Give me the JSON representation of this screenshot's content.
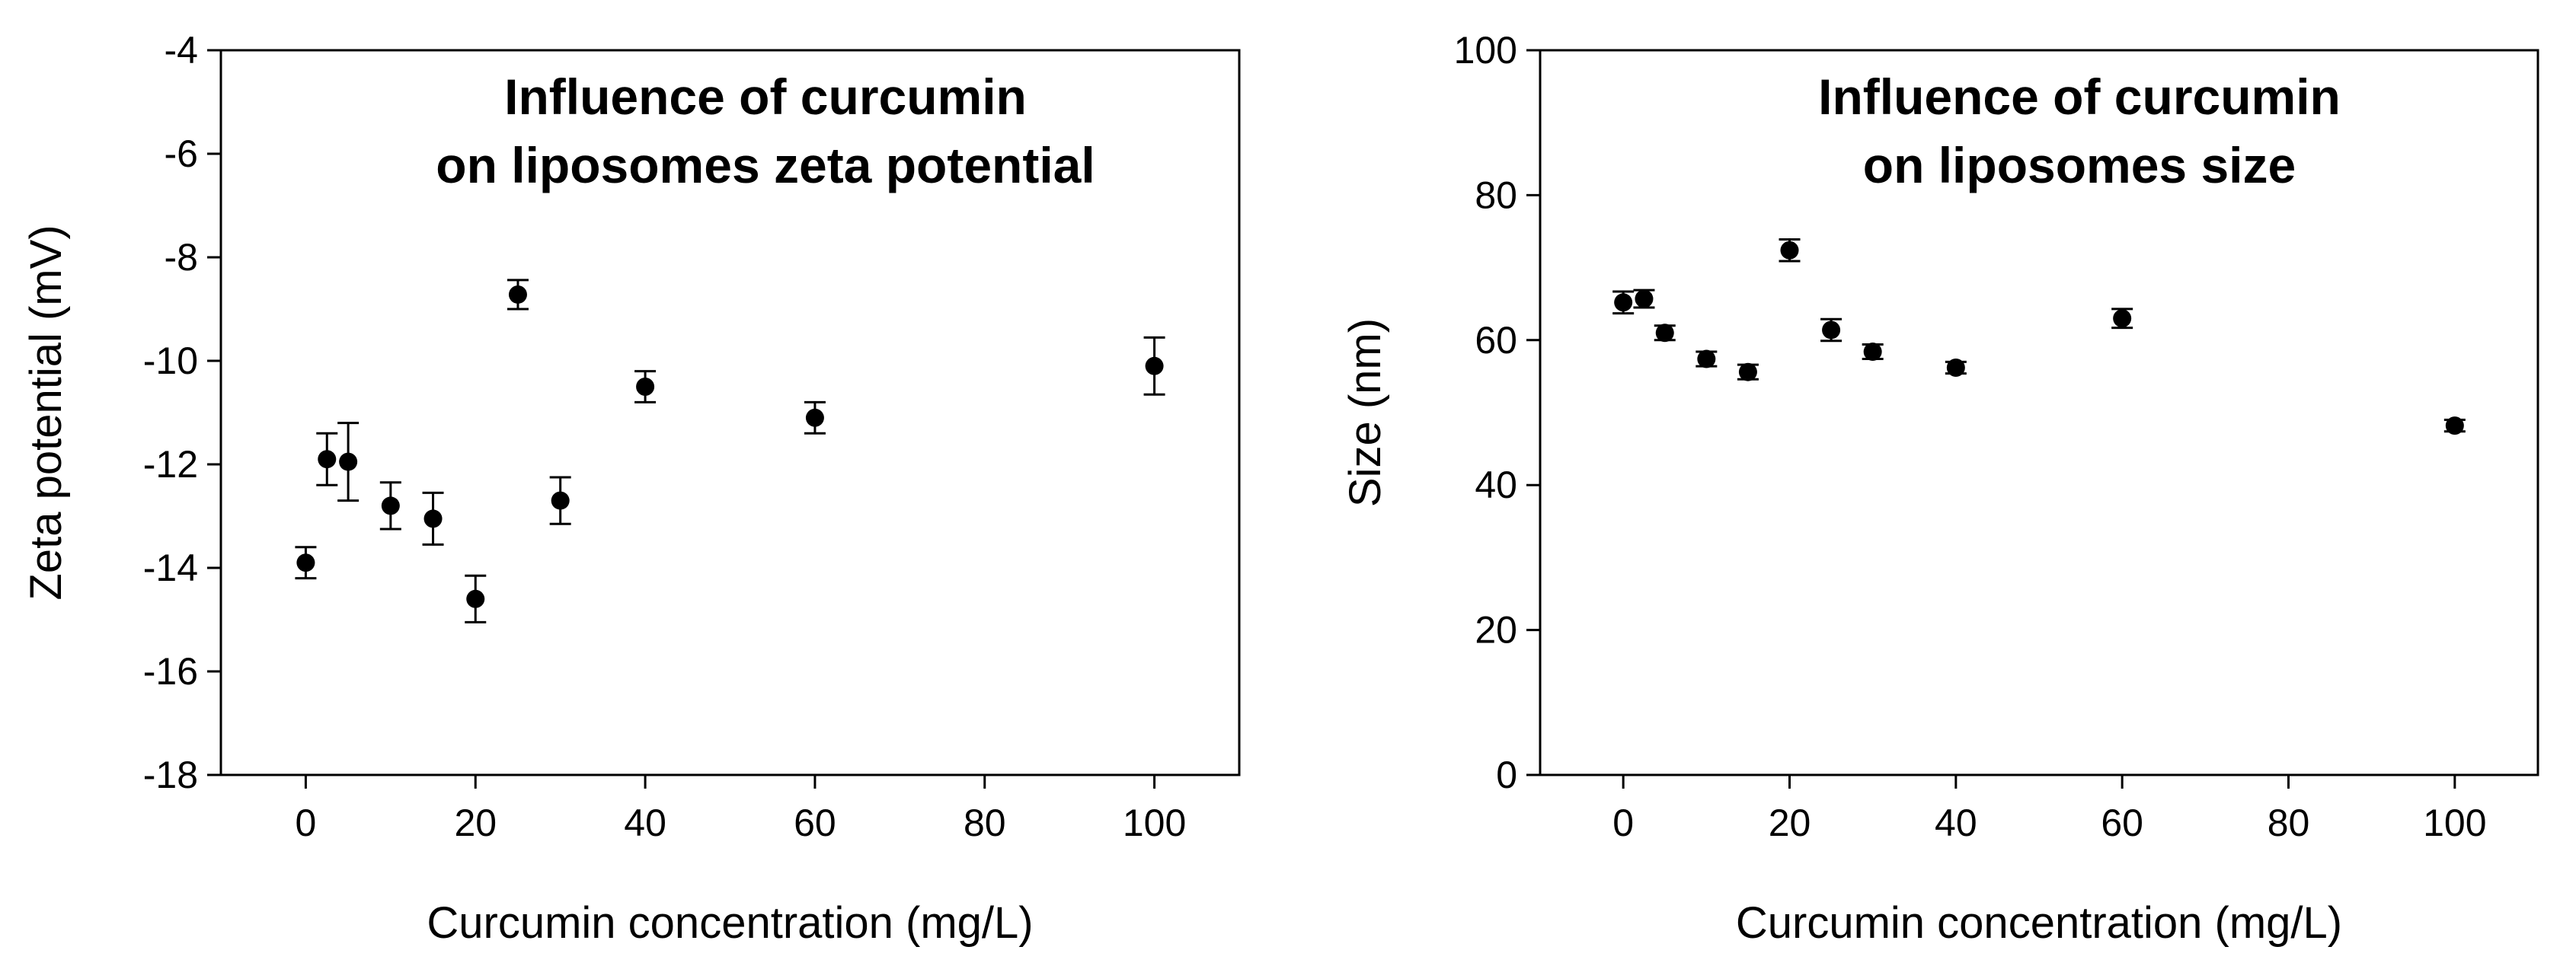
{
  "chart_data": [
    {
      "type": "scatter",
      "title_lines": [
        "Influence of curcumin",
        "on liposomes zeta potential"
      ],
      "xlabel": "Curcumin concentration (mg/L)",
      "ylabel": "Zeta potential (mV)",
      "xlim": [
        -10,
        110
      ],
      "ylim": [
        -18,
        -4
      ],
      "xticks": [
        0,
        20,
        40,
        60,
        80,
        100
      ],
      "yticks": [
        -18,
        -16,
        -14,
        -12,
        -10,
        -8,
        -6,
        -4
      ],
      "grid": false,
      "legend": "none",
      "series": [
        {
          "name": "Zeta potential",
          "x": [
            0,
            2.5,
            5,
            10,
            15,
            20,
            25,
            30,
            40,
            60,
            100
          ],
          "y": [
            -13.9,
            -11.9,
            -11.95,
            -12.8,
            -13.05,
            -14.6,
            -8.72,
            -12.7,
            -10.5,
            -11.1,
            -10.1
          ],
          "err": [
            0.3,
            0.5,
            0.75,
            0.45,
            0.5,
            0.45,
            0.28,
            0.45,
            0.3,
            0.3,
            0.55
          ]
        }
      ]
    },
    {
      "type": "scatter",
      "title_lines": [
        "Influence of curcumin",
        "on liposomes size"
      ],
      "xlabel": "Curcumin concentration (mg/L)",
      "ylabel": "Size (nm)",
      "xlim": [
        -10,
        110
      ],
      "ylim": [
        0,
        100
      ],
      "xticks": [
        0,
        20,
        40,
        60,
        80,
        100
      ],
      "yticks": [
        0,
        20,
        40,
        60,
        80,
        100
      ],
      "grid": false,
      "legend": "none",
      "series": [
        {
          "name": "Size",
          "x": [
            0,
            2.5,
            5,
            10,
            15,
            20,
            25,
            30,
            40,
            60,
            100
          ],
          "y": [
            65.2,
            65.7,
            61.0,
            57.4,
            55.6,
            72.4,
            61.4,
            58.4,
            56.2,
            63.0,
            48.2
          ],
          "err": [
            1.5,
            1.2,
            1.0,
            1.0,
            1.0,
            1.5,
            1.5,
            1.0,
            0.8,
            1.3,
            0.8
          ]
        }
      ]
    }
  ]
}
